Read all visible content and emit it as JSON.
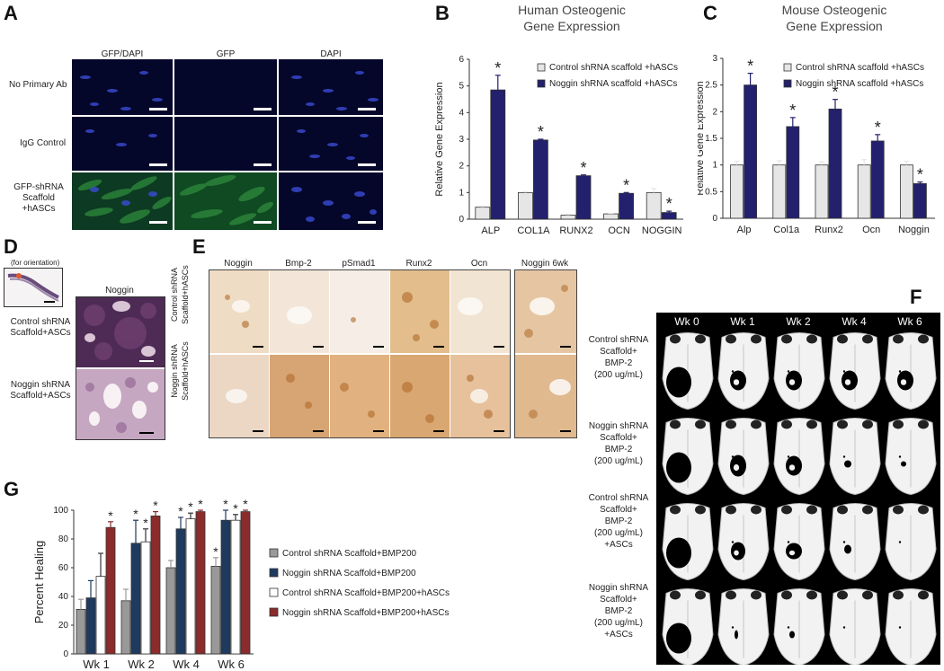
{
  "panels": {
    "A": "A",
    "B": "B",
    "C": "C",
    "D": "D",
    "E": "E",
    "F": "F",
    "G": "G"
  },
  "panelA": {
    "columns": [
      "GFP/DAPI",
      "GFP",
      "DAPI"
    ],
    "rows": [
      "No Primary Ab",
      "IgG Control",
      "GFP-shRNA\nScaffold\n+hASCs"
    ]
  },
  "panelD": {
    "orientation": "(for orientation)",
    "column": "Noggin",
    "rows": [
      "Control shRNA\nScaffold+ASCs",
      "Noggin shRNA\nScaffold+ASCs"
    ]
  },
  "panelE": {
    "columns": [
      "Noggin",
      "Bmp-2",
      "pSmad1",
      "Runx2",
      "Ocn",
      "Noggin 6wk"
    ],
    "rows": [
      "Control shRNA\nScaffold+hASCs",
      "Noggin shRNA\nScaffold+hASCs"
    ]
  },
  "panelF": {
    "columns": [
      "Wk 0",
      "Wk 1",
      "Wk 2",
      "Wk 4",
      "Wk 6"
    ],
    "rows": [
      "Control shRNA\nScaffold+\nBMP-2\n(200 ug/mL)",
      "Noggin shRNA\nScaffold+\nBMP-2\n(200 ug/mL)",
      "Control shRNA\nScaffold+\nBMP-2\n(200 ug/mL)\n+ASCs",
      "Noggin shRNA\nScaffold+\nBMP-2\n(200 ug/mL)\n+ASCs"
    ]
  },
  "colors": {
    "navy": "#23206e",
    "light": "#e6e6e6",
    "gray": "#999999",
    "darkblue": "#1e3a5f",
    "red": "#8b2b2b",
    "white": "#ffffff"
  },
  "chart_data": [
    {
      "id": "B",
      "type": "bar",
      "title": "Human Osteogenic\nGene Expression",
      "ylabel": "Relative Gene Expression",
      "ylim": [
        0,
        6
      ],
      "yticks": [
        0,
        1,
        2,
        3,
        4,
        5,
        6
      ],
      "categories": [
        "ALP",
        "COL1A",
        "RUNX2",
        "OCN",
        "NOGGIN"
      ],
      "series": [
        {
          "name": "Control shRNA scaffold +hASCs",
          "values": [
            0.45,
            1.0,
            0.15,
            0.2,
            1.0
          ],
          "err": [
            0.03,
            0.03,
            0.03,
            0.02,
            0.15
          ],
          "color": "#e6e6e6"
        },
        {
          "name": "Noggin shRNA scaffold +hASCs",
          "values": [
            4.85,
            2.97,
            1.63,
            0.97,
            0.25
          ],
          "err": [
            0.55,
            0.03,
            0.03,
            0.03,
            0.05
          ],
          "color": "#23206e"
        }
      ],
      "sig": [
        "*",
        "*",
        "*",
        "*",
        "*"
      ]
    },
    {
      "id": "C",
      "type": "bar",
      "title": "Mouse Osteogenic\nGene Expression",
      "ylabel": "Relative Gene Expression",
      "ylim": [
        0,
        3
      ],
      "yticks": [
        0,
        0.5,
        1,
        1.5,
        2,
        2.5,
        3
      ],
      "categories": [
        "Alp",
        "Col1a",
        "Runx2",
        "Ocn",
        "Noggin"
      ],
      "series": [
        {
          "name": "Control shRNA scaffold +hASCs",
          "values": [
            1.0,
            1.0,
            1.0,
            1.0,
            1.0
          ],
          "err": [
            0.07,
            0.08,
            0.06,
            0.1,
            0.07
          ],
          "color": "#e6e6e6"
        },
        {
          "name": "Noggin shRNA scaffold +hASCs",
          "values": [
            2.5,
            1.72,
            2.05,
            1.45,
            0.65
          ],
          "err": [
            0.22,
            0.17,
            0.18,
            0.12,
            0.03
          ],
          "color": "#23206e"
        }
      ],
      "sig": [
        "*",
        "*",
        "*",
        "*",
        "*"
      ]
    },
    {
      "id": "G",
      "type": "bar",
      "ylabel": "Percent Healing",
      "ylim": [
        0,
        100
      ],
      "yticks": [
        0,
        20,
        40,
        60,
        80,
        100
      ],
      "categories": [
        "Wk 1",
        "Wk 2",
        "Wk 4",
        "Wk 6"
      ],
      "series": [
        {
          "name": "Control shRNA Scaffold+BMP200",
          "values": [
            31,
            37,
            60,
            61
          ],
          "err": [
            7,
            8,
            5,
            6
          ],
          "color": "#999999"
        },
        {
          "name": "Noggin shRNA Scaffold+BMP200",
          "values": [
            39,
            77,
            87,
            93
          ],
          "err": [
            12,
            16,
            8,
            7
          ],
          "color": "#1e3a5f"
        },
        {
          "name": "Control shRNA Scaffold+BMP200+hASCs",
          "values": [
            54,
            78,
            94,
            93
          ],
          "err": [
            16,
            9,
            4,
            4
          ],
          "color": "#ffffff"
        },
        {
          "name": "Noggin shRNA Scaffold+BMP200+hASCs",
          "values": [
            88,
            96,
            99,
            99
          ],
          "err": [
            4,
            3,
            1,
            1
          ],
          "color": "#8b2b2b"
        }
      ],
      "sig_series": [
        [
          "",
          "",
          "",
          "*"
        ],
        [
          "",
          "*",
          "*",
          "*"
        ],
        [
          "",
          "*",
          "*",
          "*"
        ],
        [
          "*",
          "*",
          "*",
          "*"
        ]
      ]
    }
  ]
}
